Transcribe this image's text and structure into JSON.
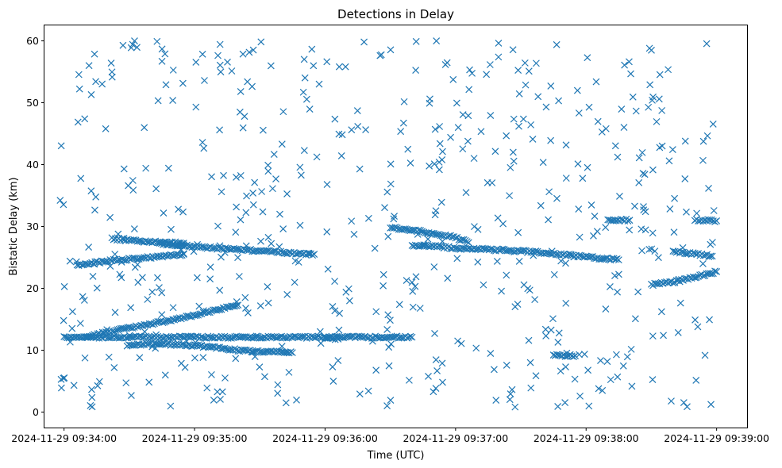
{
  "chart_data": {
    "type": "scatter",
    "title": "Detections in Delay",
    "xlabel": "Time (UTC)",
    "ylabel": "Bistatic Delay (km)",
    "xlim": [
      "2024-11-29 09:33:51",
      "2024-11-29 09:39:14"
    ],
    "ylim": [
      -2.5,
      62.5
    ],
    "x_ticks": [
      "2024-11-29 09:34:00",
      "2024-11-29 09:35:00",
      "2024-11-29 09:36:00",
      "2024-11-29 09:37:00",
      "2024-11-29 09:38:00",
      "2024-11-29 09:39:00"
    ],
    "y_ticks": [
      0,
      10,
      20,
      30,
      40,
      50,
      60
    ],
    "marker": "x",
    "color": "#1f77b4",
    "grid": false,
    "series": [
      {
        "tracks": [
          {
            "t": [
              "09:34:00",
              "09:34:20",
              "09:34:40",
              "09:35:00",
              "09:35:20",
              "09:35:40",
              "09:36:00",
              "09:36:20",
              "09:36:40"
            ],
            "delay": [
              12.1,
              12.1,
              12.1,
              12.1,
              12.1,
              12.1,
              12.1,
              12.1,
              12.1
            ]
          },
          {
            "t": [
              "09:34:06",
              "09:34:15",
              "09:34:22",
              "09:34:40",
              "09:34:55"
            ],
            "delay": [
              23.7,
              24.2,
              24.5,
              25.0,
              25.5
            ]
          },
          {
            "t": [
              "09:34:10",
              "09:34:30",
              "09:34:50",
              "09:35:04",
              "09:35:20"
            ],
            "delay": [
              12.2,
              13.6,
              14.9,
              16.0,
              17.3
            ]
          },
          {
            "t": [
              "09:34:22",
              "09:34:33",
              "09:34:42",
              "09:34:55"
            ],
            "delay": [
              28.0,
              27.7,
              27.5,
              27.3
            ]
          },
          {
            "t": [
              "09:34:44",
              "09:34:55",
              "09:35:05",
              "09:35:15",
              "09:35:25",
              "09:35:35",
              "09:35:45",
              "09:35:55"
            ],
            "delay": [
              27.2,
              26.9,
              26.6,
              26.4,
              26.2,
              25.9,
              25.7,
              25.5
            ]
          },
          {
            "t": [
              "09:34:29",
              "09:34:40",
              "09:34:55",
              "09:35:10",
              "09:35:20",
              "09:35:30",
              "09:35:45"
            ],
            "delay": [
              10.8,
              11.0,
              10.9,
              10.4,
              10.0,
              9.8,
              9.6
            ]
          },
          {
            "t": [
              "09:36:00",
              "09:36:02",
              "09:36:04",
              "09:36:06"
            ],
            "delay": [
              12.1,
              12.0,
              11.9,
              11.8
            ]
          },
          {
            "t": [
              "09:36:30",
              "09:36:40",
              "09:36:50",
              "09:37:00",
              "09:37:06"
            ],
            "delay": [
              29.8,
              29.4,
              28.9,
              28.2,
              27.4
            ]
          },
          {
            "t": [
              "09:36:40",
              "09:36:50",
              "09:37:00",
              "09:37:20",
              "09:37:40",
              "09:38:00",
              "09:38:15"
            ],
            "delay": [
              27.0,
              26.8,
              26.5,
              26.2,
              25.8,
              25.1,
              24.6
            ]
          },
          {
            "t": [
              "09:37:45",
              "09:37:55"
            ],
            "delay": [
              9.2,
              9.1
            ]
          },
          {
            "t": [
              "09:38:10",
              "09:38:20"
            ],
            "delay": [
              31.1,
              31.0
            ]
          },
          {
            "t": [
              "09:38:30",
              "09:38:40",
              "09:38:50",
              "09:39:00"
            ],
            "delay": [
              20.6,
              21.0,
              21.8,
              22.7
            ]
          },
          {
            "t": [
              "09:38:40",
              "09:38:50",
              "09:38:58"
            ],
            "delay": [
              25.9,
              25.6,
              25.2
            ]
          },
          {
            "t": [
              "09:38:50",
              "09:39:00"
            ],
            "delay": [
              31.0,
              30.9
            ]
          }
        ],
        "clutter_delay_range": [
          0.8,
          60.0
        ],
        "clutter_time_range": [
          "09:33:58",
          "09:39:00"
        ]
      }
    ]
  }
}
